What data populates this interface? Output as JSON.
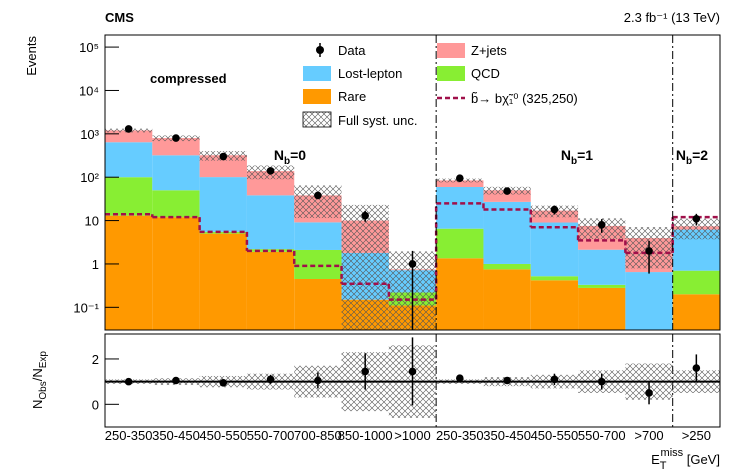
{
  "chart_data": [
    {
      "type": "bar",
      "stacked": true,
      "log_scale": true,
      "title": "CMS",
      "lumi": "2.3 fb⁻¹ (13 TeV)",
      "ylabel": "Events",
      "annotation": "compressed",
      "categories": [
        "250-350",
        "350-450",
        "450-550",
        "550-700",
        "700-850",
        "850-1000",
        ">1000",
        "250-350",
        "350-450",
        "450-550",
        "550-700",
        ">700",
        ">250"
      ],
      "series": [
        {
          "name": "Rare",
          "color": "#ff9900",
          "values": [
            13,
            12,
            5,
            1.9,
            0.45,
            0.15,
            0.11,
            1.35,
            0.75,
            0.42,
            0.28,
            0,
            0.2
          ]
        },
        {
          "name": "QCD",
          "color": "#88ee33",
          "values": [
            87,
            38,
            0.5,
            0.3,
            1.65,
            0,
            0.11,
            5.15,
            0.25,
            0.1,
            0.05,
            0,
            0.5
          ]
        },
        {
          "name": "Lost-lepton",
          "color": "#66ccff",
          "values": [
            540,
            270,
            95,
            36,
            7,
            1.65,
            0.5,
            53,
            26,
            8.5,
            1.8,
            0.65,
            5.5
          ]
        },
        {
          "name": "Z+jets",
          "color": "#ff9999",
          "values": [
            560,
            480,
            220,
            100,
            29,
            8.2,
            0.03,
            25,
            23,
            8,
            5.4,
            3.3,
            1.2
          ]
        }
      ],
      "data": {
        "name": "Data",
        "color": "#000000",
        "values": [
          1300,
          800,
          300,
          140,
          38,
          13,
          1,
          95,
          48,
          18,
          8,
          2,
          11
        ],
        "errors": [
          36,
          28,
          17,
          12,
          6,
          3.6,
          1,
          10,
          7,
          4.2,
          2.8,
          1.4,
          3.3
        ]
      },
      "signal": {
        "name": "b̃→ bχ̃₁⁰ (325,250)",
        "color": "#a0104a",
        "values": [
          14,
          12,
          5.5,
          2,
          0.9,
          0.35,
          0.15,
          25,
          18,
          7,
          3.5,
          1.8,
          12
        ]
      },
      "syst": {
        "name": "Full syst. unc.",
        "rel_unc": [
          0.1,
          0.15,
          0.25,
          0.35,
          0.7,
          1.3,
          1.6,
          0.1,
          0.2,
          0.3,
          0.5,
          0.8,
          0.5
        ]
      },
      "regions": [
        {
          "text": [
            "N",
            "b",
            "=0"
          ],
          "bins": 7
        },
        {
          "text": [
            "N",
            "b",
            "=1"
          ],
          "bins": 5
        },
        {
          "text": [
            "N",
            "b",
            "=2"
          ],
          "bins": 1
        }
      ],
      "ylim": [
        0.03,
        190000
      ],
      "yticks": [
        {
          "value": 0.1,
          "label": "10⁻¹"
        },
        1,
        10,
        {
          "value": 100,
          "label": "10²"
        },
        {
          "value": 1000,
          "label": "10³"
        },
        {
          "value": 10000,
          "label": "10⁴"
        },
        {
          "value": 100000,
          "label": "10⁵"
        }
      ]
    },
    {
      "type": "errorbar",
      "ylabel": [
        "N",
        "Obs",
        "/N",
        "Exp"
      ],
      "xlabel": [
        "E",
        "T",
        "miss",
        " [GeV]"
      ],
      "values": [
        1.0,
        1.05,
        0.95,
        1.1,
        1.05,
        1.45,
        1.45,
        1.15,
        1.05,
        1.1,
        1.0,
        0.5,
        1.6
      ],
      "errors": [
        0.05,
        0.08,
        0.1,
        0.2,
        0.35,
        0.8,
        1.5,
        0.1,
        0.15,
        0.25,
        0.35,
        0.5,
        0.6
      ],
      "reference": 1,
      "ylim": [
        -1,
        3.1
      ],
      "yticks": [
        0,
        2
      ]
    }
  ]
}
